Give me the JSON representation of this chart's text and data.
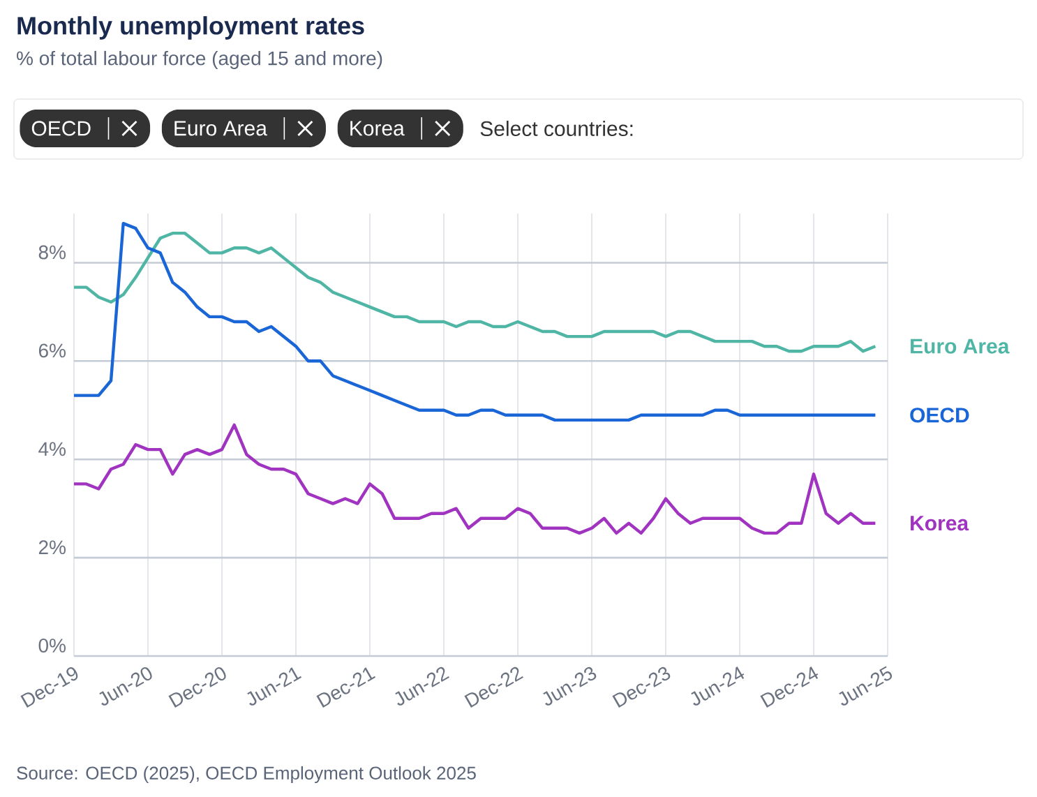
{
  "chart_data": {
    "type": "line",
    "title": "Monthly unemployment rates",
    "subtitle": "% of total labour force (aged 15 and more)",
    "annotations": [
      "OECD",
      "Euro Area",
      "Korea",
      "Select countries:",
      "Source: OECD (2025), OECD Employment Outlook 2025"
    ],
    "x": [
      "2019-12",
      "2020-01",
      "2020-02",
      "2020-03",
      "2020-04",
      "2020-05",
      "2020-06",
      "2020-07",
      "2020-08",
      "2020-09",
      "2020-10",
      "2020-11",
      "2020-12",
      "2021-01",
      "2021-02",
      "2021-03",
      "2021-04",
      "2021-05",
      "2021-06",
      "2021-07",
      "2021-08",
      "2021-09",
      "2021-10",
      "2021-11",
      "2021-12",
      "2022-01",
      "2022-02",
      "2022-03",
      "2022-04",
      "2022-05",
      "2022-06",
      "2022-07",
      "2022-08",
      "2022-09",
      "2022-10",
      "2022-11",
      "2022-12",
      "2023-01",
      "2023-02",
      "2023-03",
      "2023-04",
      "2023-05",
      "2023-06",
      "2023-07",
      "2023-08",
      "2023-09",
      "2023-10",
      "2023-11",
      "2023-12",
      "2024-01",
      "2024-02",
      "2024-03",
      "2024-04",
      "2024-05",
      "2024-06",
      "2024-07",
      "2024-08",
      "2024-09",
      "2024-10",
      "2024-11",
      "2024-12",
      "2025-01",
      "2025-02",
      "2025-03",
      "2025-04",
      "2025-05"
    ],
    "series": [
      {
        "name": "Euro Area",
        "color": "#4fb5a5",
        "values": [
          7.5,
          7.5,
          7.3,
          7.2,
          7.35,
          7.7,
          8.1,
          8.5,
          8.6,
          8.6,
          8.4,
          8.2,
          8.2,
          8.3,
          8.3,
          8.2,
          8.3,
          8.1,
          7.9,
          7.7,
          7.6,
          7.4,
          7.3,
          7.2,
          7.1,
          7.0,
          6.9,
          6.9,
          6.8,
          6.8,
          6.8,
          6.7,
          6.8,
          6.8,
          6.7,
          6.7,
          6.8,
          6.7,
          6.6,
          6.6,
          6.5,
          6.5,
          6.5,
          6.6,
          6.6,
          6.6,
          6.6,
          6.6,
          6.5,
          6.6,
          6.6,
          6.5,
          6.4,
          6.4,
          6.4,
          6.4,
          6.3,
          6.3,
          6.2,
          6.2,
          6.3,
          6.3,
          6.3,
          6.4,
          6.2,
          6.3
        ]
      },
      {
        "name": "OECD",
        "color": "#1a66d6",
        "values": [
          5.3,
          5.3,
          5.3,
          5.6,
          8.8,
          8.7,
          8.3,
          8.2,
          7.6,
          7.4,
          7.1,
          6.9,
          6.9,
          6.8,
          6.8,
          6.6,
          6.7,
          6.5,
          6.3,
          6.0,
          6.0,
          5.7,
          5.6,
          5.5,
          5.4,
          5.3,
          5.2,
          5.1,
          5.0,
          5.0,
          5.0,
          4.9,
          4.9,
          5.0,
          5.0,
          4.9,
          4.9,
          4.9,
          4.9,
          4.8,
          4.8,
          4.8,
          4.8,
          4.8,
          4.8,
          4.8,
          4.9,
          4.9,
          4.9,
          4.9,
          4.9,
          4.9,
          5.0,
          5.0,
          4.9,
          4.9,
          4.9,
          4.9,
          4.9,
          4.9,
          4.9,
          4.9,
          4.9,
          4.9,
          4.9,
          4.9
        ]
      },
      {
        "name": "Korea",
        "color": "#a033c0",
        "values": [
          3.5,
          3.5,
          3.4,
          3.8,
          3.9,
          4.3,
          4.2,
          4.2,
          3.7,
          4.1,
          4.2,
          4.1,
          4.2,
          4.7,
          4.1,
          3.9,
          3.8,
          3.8,
          3.7,
          3.3,
          3.2,
          3.1,
          3.2,
          3.1,
          3.5,
          3.3,
          2.8,
          2.8,
          2.8,
          2.9,
          2.9,
          3.0,
          2.6,
          2.8,
          2.8,
          2.8,
          3.0,
          2.9,
          2.6,
          2.6,
          2.6,
          2.5,
          2.6,
          2.8,
          2.5,
          2.7,
          2.5,
          2.8,
          3.2,
          2.9,
          2.7,
          2.8,
          2.8,
          2.8,
          2.8,
          2.6,
          2.5,
          2.5,
          2.7,
          2.7,
          3.7,
          2.9,
          2.7,
          2.9,
          2.7,
          2.7
        ]
      }
    ],
    "xlim": [
      "2019-12",
      "2025-06"
    ],
    "xticks": [
      {
        "value": "2019-12",
        "label": "Dec-19"
      },
      {
        "value": "2020-06",
        "label": "Jun-20"
      },
      {
        "value": "2020-12",
        "label": "Dec-20"
      },
      {
        "value": "2021-06",
        "label": "Jun-21"
      },
      {
        "value": "2021-12",
        "label": "Dec-21"
      },
      {
        "value": "2022-06",
        "label": "Jun-22"
      },
      {
        "value": "2022-12",
        "label": "Dec-22"
      },
      {
        "value": "2023-06",
        "label": "Jun-23"
      },
      {
        "value": "2023-12",
        "label": "Dec-23"
      },
      {
        "value": "2024-06",
        "label": "Jun-24"
      },
      {
        "value": "2024-12",
        "label": "Dec-24"
      },
      {
        "value": "2025-06",
        "label": "Jun-25"
      }
    ],
    "ylim": [
      0,
      9
    ],
    "yticks": [
      {
        "value": 0,
        "label": "0%"
      },
      {
        "value": 2,
        "label": "2%"
      },
      {
        "value": 4,
        "label": "4%"
      },
      {
        "value": 6,
        "label": "6%"
      },
      {
        "value": 8,
        "label": "8%"
      }
    ],
    "grid": true
  }
}
